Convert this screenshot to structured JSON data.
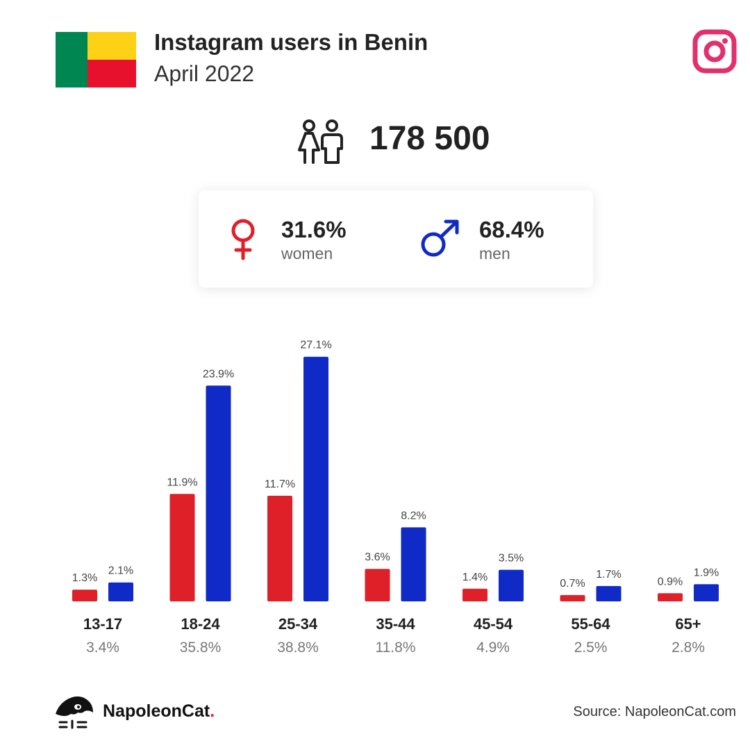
{
  "header": {
    "title": "Instagram users in Benin",
    "subtitle": "April 2022",
    "flag_colors": {
      "green": "#008751",
      "yellow": "#fcd116",
      "red": "#e8112d"
    },
    "brand_icon": "instagram-icon",
    "brand_color": "#e1306c"
  },
  "summary": {
    "total": "178 500",
    "icon": "people-icon",
    "women": {
      "percent": "31.6%",
      "label": "women",
      "icon": "female-icon",
      "color": "#df2029"
    },
    "men": {
      "percent": "68.4%",
      "label": "men",
      "icon": "male-icon",
      "color": "#0f2ac6"
    }
  },
  "chart_data": {
    "type": "bar",
    "categories": [
      "13-17",
      "18-24",
      "25-34",
      "35-44",
      "45-54",
      "55-64",
      "65+"
    ],
    "category_totals": [
      "3.4%",
      "35.8%",
      "38.8%",
      "11.8%",
      "4.9%",
      "2.5%",
      "2.8%"
    ],
    "series": [
      {
        "values": [
          1.3,
          11.9,
          11.7,
          3.6,
          1.4,
          0.7,
          0.9
        ],
        "labels": [
          "1.3%",
          "11.9%",
          "11.7%",
          "3.6%",
          "1.4%",
          "0.7%",
          "0.9%"
        ],
        "color": "#df2029"
      },
      {
        "values": [
          2.1,
          23.9,
          27.1,
          8.2,
          3.5,
          1.7,
          1.9
        ],
        "labels": [
          "2.1%",
          "23.9%",
          "27.1%",
          "8.2%",
          "3.5%",
          "1.7%",
          "1.9%"
        ],
        "color": "#0f2ac6"
      }
    ],
    "grid": false
  },
  "footer": {
    "logo_text": "NapoleonCat",
    "logo_dot": ".",
    "logo_icon": "napoleoncat-logo-icon",
    "source": "Source: NapoleonCat.com"
  }
}
